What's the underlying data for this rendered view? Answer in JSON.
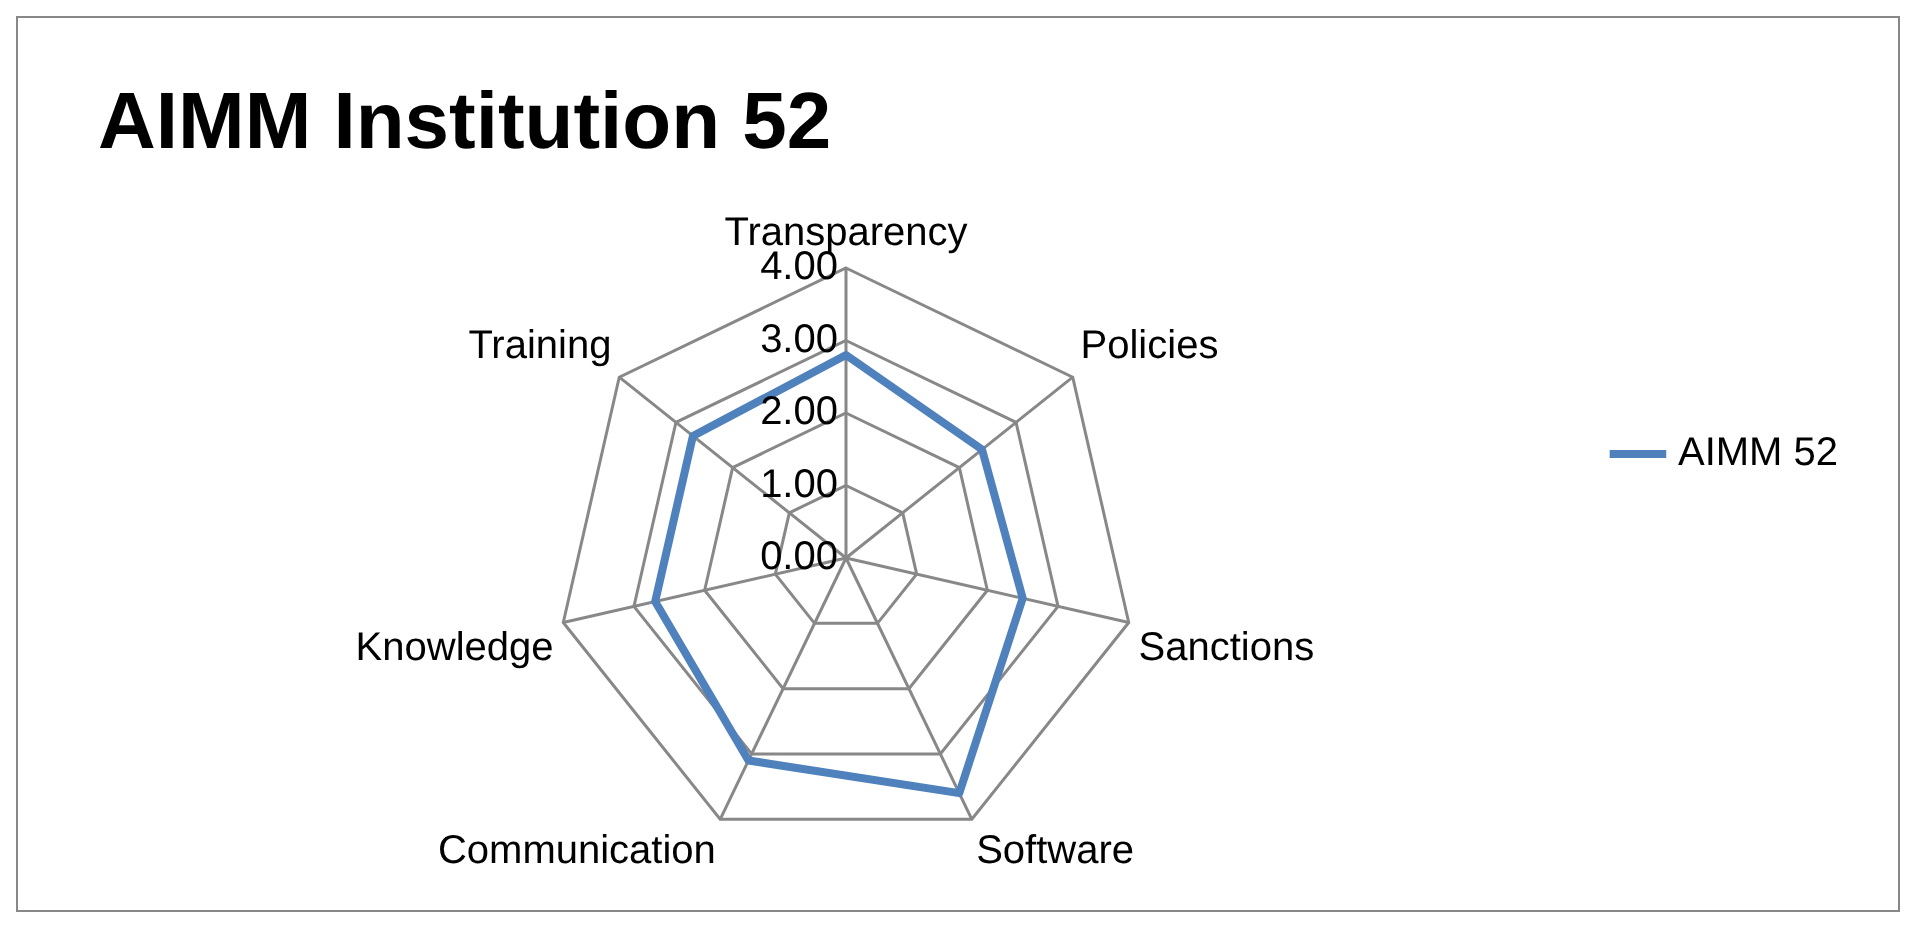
{
  "chart_data": {
    "type": "radar",
    "title": "AIMM Institution 52",
    "categories": [
      "Transparency",
      "Policies",
      "Sanctions",
      "Software",
      "Communication",
      "Knowledge",
      "Training"
    ],
    "series": [
      {
        "name": "AIMM 52",
        "color": "#4f81bd",
        "values": [
          2.8,
          2.4,
          2.5,
          3.6,
          3.1,
          2.7,
          2.7
        ]
      }
    ],
    "ylim": [
      0,
      4
    ],
    "yticks": [
      {
        "value": 0,
        "label": "0.00"
      },
      {
        "value": 1,
        "label": "1.00"
      },
      {
        "value": 2,
        "label": "2.00"
      },
      {
        "value": 3,
        "label": "3.00"
      },
      {
        "value": 4,
        "label": "4.00"
      }
    ],
    "grid": true,
    "legend": "right",
    "marker": "none",
    "line_style": "solid"
  }
}
